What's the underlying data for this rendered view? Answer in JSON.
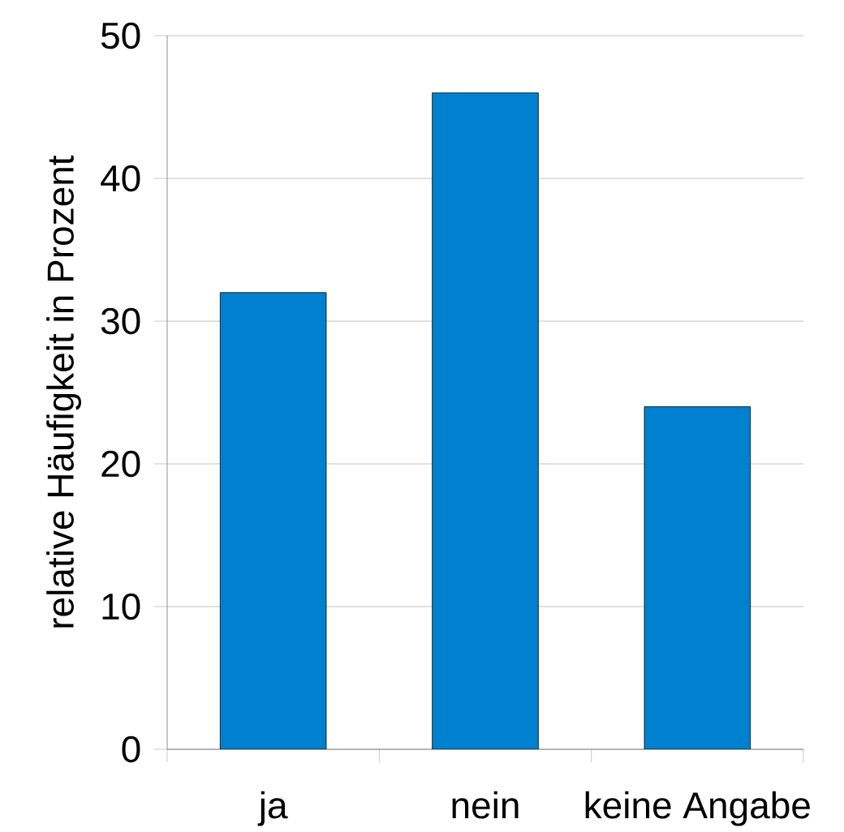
{
  "chart_data": {
    "type": "bar",
    "ylabel": "relative Häufigkeit in Prozent",
    "categories": [
      "ja",
      "nein",
      "keine Angabe"
    ],
    "values": [
      32,
      46,
      24
    ],
    "color": "#0081cf",
    "ylim": [
      0,
      50
    ],
    "yticks": [
      0,
      10,
      20,
      30,
      40,
      50
    ],
    "grid": "y"
  }
}
